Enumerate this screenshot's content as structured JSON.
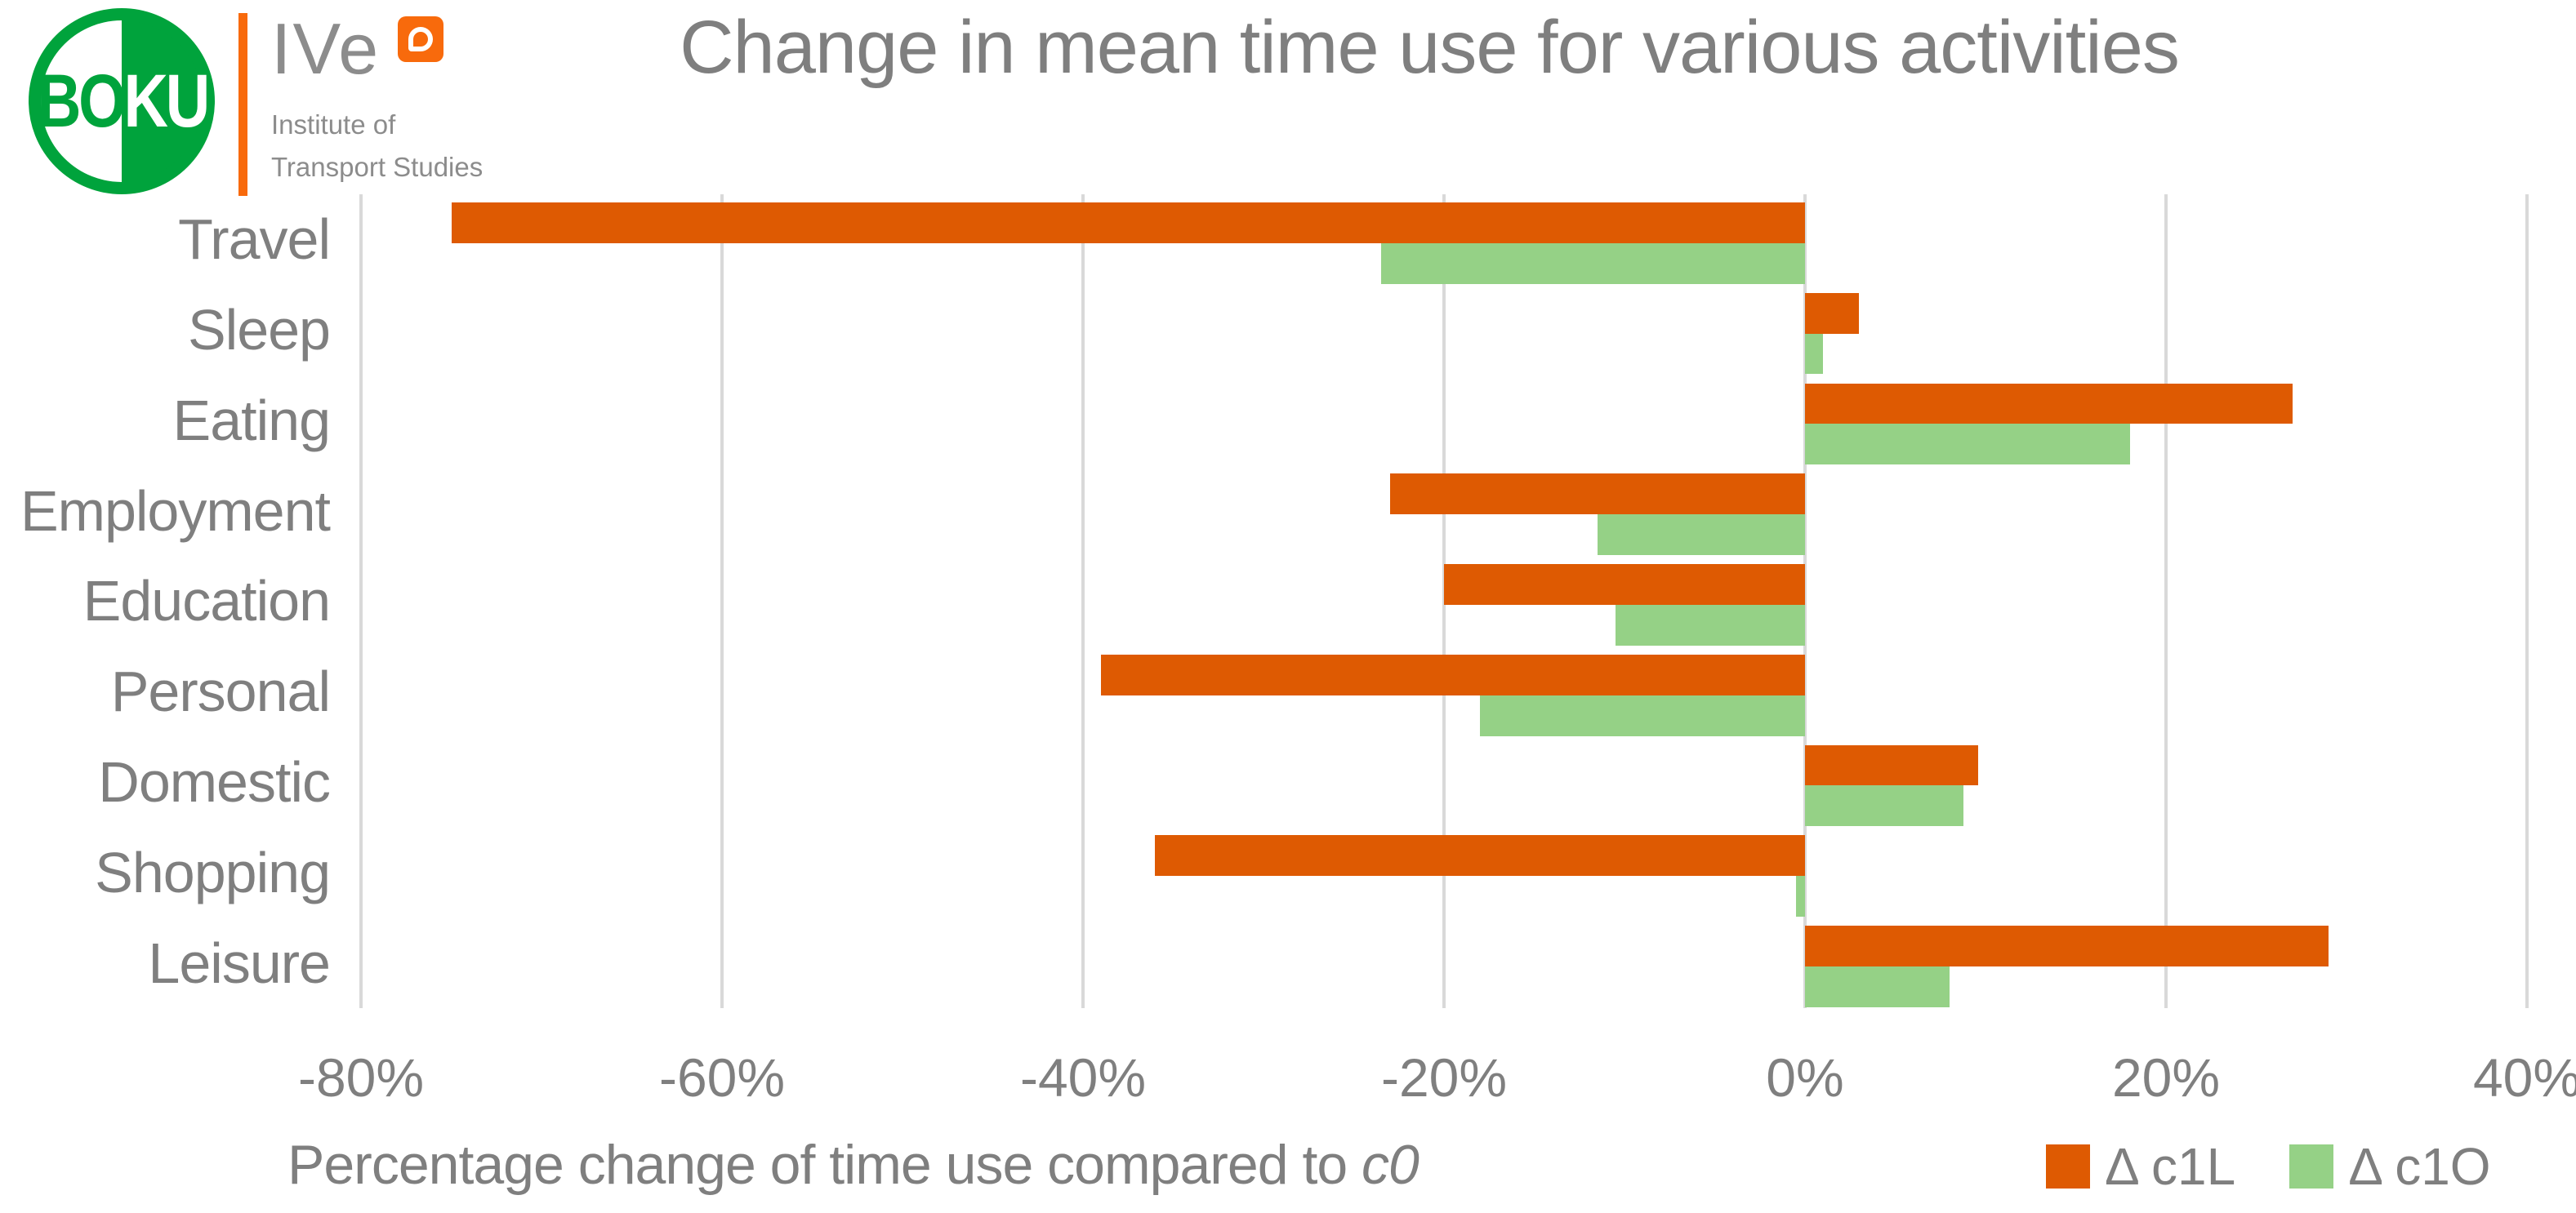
{
  "header": {
    "title": "Change in mean time use for various activities",
    "boku_logo": {
      "text_left": "BO",
      "text_right": "KU",
      "green": "#00A33C"
    },
    "ive_logo": {
      "name": "IVe",
      "sub_line1": "Institute of",
      "sub_line2": "Transport Studies",
      "orange": "#F86A0C",
      "gray": "#8C8C8C"
    }
  },
  "chart_data": {
    "type": "bar",
    "orientation": "horizontal",
    "title": "Change in mean time use for various activities",
    "categories": [
      "Travel",
      "Sleep",
      "Eating",
      "Employment",
      "Education",
      "Personal",
      "Domestic",
      "Shopping",
      "Leisure"
    ],
    "series": [
      {
        "name": "Δ c1L",
        "color": "#DE5A02",
        "values": [
          -75,
          3,
          27,
          -23,
          -20,
          -39,
          9.6,
          -36,
          29
        ]
      },
      {
        "name": "Δ c1O",
        "color": "#95D186",
        "values": [
          -23.5,
          1,
          18,
          -11.5,
          -10.5,
          -18,
          8.8,
          -0.5,
          8
        ]
      }
    ],
    "xlabel": "Percentage change of time use compared to c0",
    "x_ticks": [
      "-80%",
      "-60%",
      "-40%",
      "-20%",
      "0%",
      "20%",
      "40%"
    ],
    "x_tick_values": [
      -80,
      -60,
      -40,
      -20,
      0,
      20,
      40
    ],
    "xlim": [
      -80,
      40
    ],
    "unit": "percent",
    "grid": "vertical",
    "legend_position": "bottom-right"
  },
  "axis": {
    "label_main": "Percentage change of time use compared to ",
    "label_italic": "c0"
  },
  "legend": {
    "items": [
      {
        "label": "Δ c1L",
        "color": "#DE5A02"
      },
      {
        "label": "Δ c1O",
        "color": "#95D186"
      }
    ]
  },
  "colors": {
    "background": "#FFFFFF",
    "gridline": "#D9D9D9",
    "text_gray": "#7F7F7F"
  }
}
